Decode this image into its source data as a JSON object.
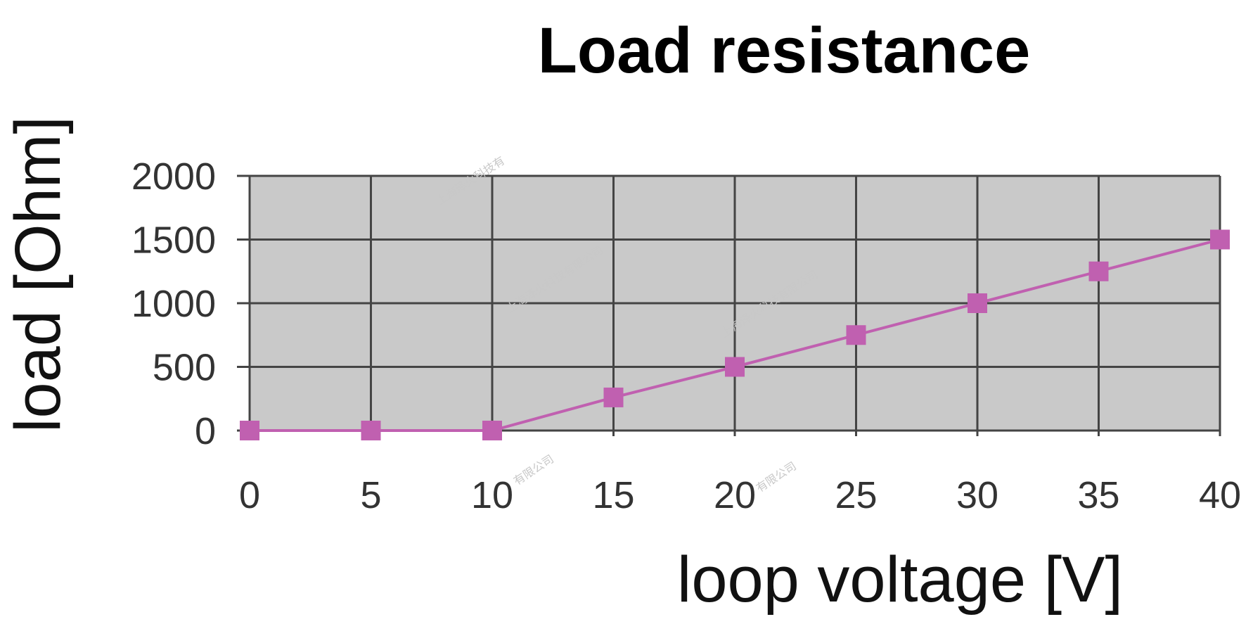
{
  "chart_data": {
    "type": "line",
    "title": "Load resistance",
    "xlabel": "loop voltage [V]",
    "ylabel": "load [Ohm]",
    "x": [
      0,
      5,
      10,
      15,
      20,
      25,
      30,
      35,
      40
    ],
    "series": [
      {
        "values": [
          0,
          0,
          0,
          260,
          500,
          750,
          1000,
          1250,
          1500
        ]
      }
    ],
    "x_ticks": [
      "0",
      "5",
      "10",
      "15",
      "20",
      "25",
      "30",
      "35",
      "40"
    ],
    "y_ticks": [
      "0",
      "500",
      "1000",
      "1500",
      "2000"
    ],
    "xlim": [
      0,
      40
    ],
    "ylim": [
      0,
      2000
    ],
    "grid": true,
    "legend": "none",
    "colors": {
      "series": "#c060b0",
      "plot_background": "#c9c9c9",
      "grid": "#444444"
    },
    "watermark": [
      "上海泽火科技有",
      "上海泽火科技有限公司",
      "上海泽火科技有限公司",
      "有限公司",
      "有限公司"
    ]
  }
}
